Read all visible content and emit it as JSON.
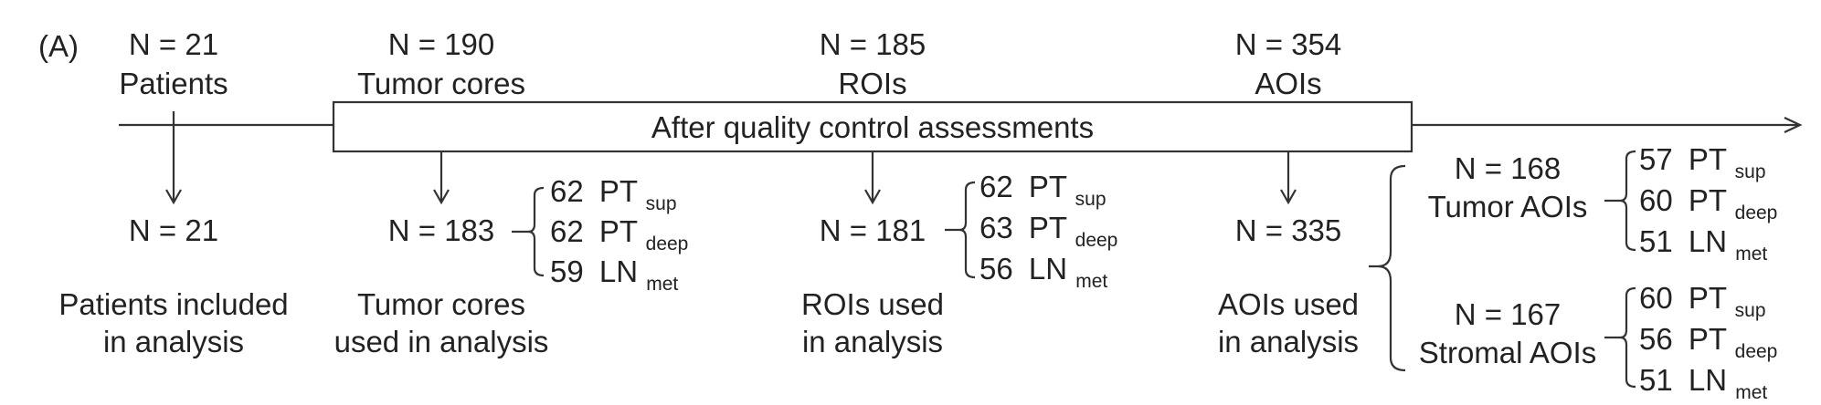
{
  "panel_label": "(A)",
  "qc_label": "After quality control assessments",
  "stages": [
    {
      "n_top": "N = 21",
      "label_top": "Patients",
      "n_bottom": "N = 21",
      "caption_line1": "Patients included",
      "caption_line2": "in analysis"
    },
    {
      "n_top": "N = 190",
      "label_top": "Tumor cores",
      "n_bottom": "N = 183",
      "caption_line1": "Tumor cores",
      "caption_line2": "used in analysis",
      "breakdown": [
        {
          "count": "62",
          "base": "PT",
          "sub": "sup"
        },
        {
          "count": "62",
          "base": "PT",
          "sub": "deep"
        },
        {
          "count": "59",
          "base": "LN",
          "sub": "met"
        }
      ]
    },
    {
      "n_top": "N = 185",
      "label_top": "ROIs",
      "n_bottom": "N = 181",
      "caption_line1": "ROIs used",
      "caption_line2": "in analysis",
      "breakdown": [
        {
          "count": "62",
          "base": "PT",
          "sub": "sup"
        },
        {
          "count": "63",
          "base": "PT",
          "sub": "deep"
        },
        {
          "count": "56",
          "base": "LN",
          "sub": "met"
        }
      ]
    },
    {
      "n_top": "N = 354",
      "label_top": "AOIs",
      "n_bottom": "N = 335",
      "caption_line1": "AOIs used",
      "caption_line2": "in analysis"
    }
  ],
  "aoi_groups": [
    {
      "n": "N = 168",
      "label": "Tumor AOIs",
      "breakdown": [
        {
          "count": "57",
          "base": "PT",
          "sub": "sup"
        },
        {
          "count": "60",
          "base": "PT",
          "sub": "deep"
        },
        {
          "count": "51",
          "base": "LN",
          "sub": "met"
        }
      ]
    },
    {
      "n": "N = 167",
      "label": "Stromal AOIs",
      "breakdown": [
        {
          "count": "60",
          "base": "PT",
          "sub": "sup"
        },
        {
          "count": "56",
          "base": "PT",
          "sub": "deep"
        },
        {
          "count": "51",
          "base": "LN",
          "sub": "met"
        }
      ]
    }
  ]
}
